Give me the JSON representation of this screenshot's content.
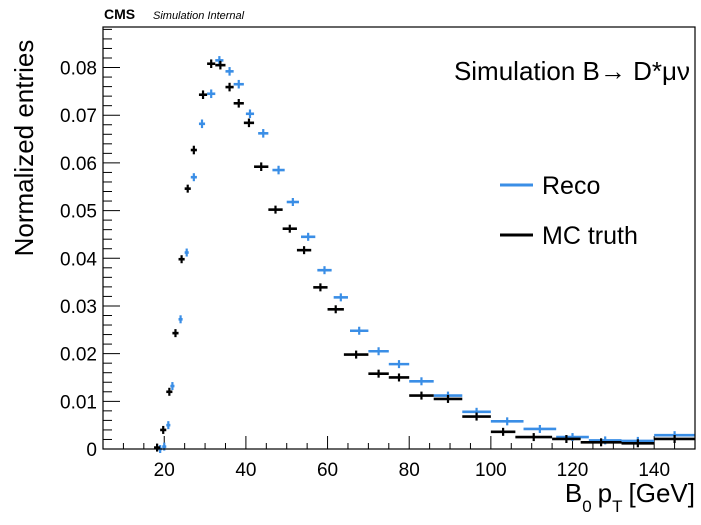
{
  "header": {
    "experiment": "CMS",
    "status": "Simulation Internal"
  },
  "annotation": "Simulation B→ D*μν",
  "chart_data": {
    "type": "line",
    "title": "",
    "xlabel": "B₀ pₜ [GeV]",
    "ylabel": "Normalized entries",
    "xlim": [
      5,
      150
    ],
    "ylim": [
      0,
      0.0885
    ],
    "grid": false,
    "legend_position": "right",
    "x_ticks": [
      20,
      40,
      60,
      80,
      100,
      120,
      140
    ],
    "y_ticks": [
      0,
      0.01,
      0.02,
      0.03,
      0.04,
      0.05,
      0.06,
      0.07,
      0.08
    ],
    "y_tick_labels": [
      "0",
      "0.01",
      "0.02",
      "0.03",
      "0.04",
      "0.05",
      "0.06",
      "0.07",
      "0.08"
    ],
    "series": [
      {
        "name": "Reco",
        "color": "#3a8ee6",
        "points": [
          {
            "x0": 18.5,
            "x1": 19.5,
            "y": 0.0,
            "err": 0.0003
          },
          {
            "x0": 19.5,
            "x1": 20.5,
            "y": 0.0005,
            "err": 0.0004
          },
          {
            "x0": 20.5,
            "x1": 21.5,
            "y": 0.005,
            "err": 0.0005
          },
          {
            "x0": 21.5,
            "x1": 22.5,
            "y": 0.0132,
            "err": 0.0005
          },
          {
            "x0": 23.5,
            "x1": 24.5,
            "y": 0.0272,
            "err": 0.0006
          },
          {
            "x0": 25.0,
            "x1": 26.0,
            "y": 0.0412,
            "err": 0.0007
          },
          {
            "x0": 26.5,
            "x1": 28.0,
            "y": 0.057,
            "err": 0.0008
          },
          {
            "x0": 28.5,
            "x1": 30.0,
            "y": 0.0682,
            "err": 0.0009
          },
          {
            "x0": 30.5,
            "x1": 32.5,
            "y": 0.0745,
            "err": 0.0009
          },
          {
            "x0": 32.5,
            "x1": 34.5,
            "y": 0.0815,
            "err": 0.0009
          },
          {
            "x0": 35.0,
            "x1": 37.0,
            "y": 0.0792,
            "err": 0.0009
          },
          {
            "x0": 37.0,
            "x1": 39.5,
            "y": 0.0765,
            "err": 0.0009
          },
          {
            "x0": 40.0,
            "x1": 42.0,
            "y": 0.0703,
            "err": 0.0009
          },
          {
            "x0": 43.0,
            "x1": 45.5,
            "y": 0.0662,
            "err": 0.0009
          },
          {
            "x0": 46.5,
            "x1": 49.5,
            "y": 0.0585,
            "err": 0.0009
          },
          {
            "x0": 50.0,
            "x1": 53.0,
            "y": 0.0518,
            "err": 0.0008
          },
          {
            "x0": 53.5,
            "x1": 57.0,
            "y": 0.0445,
            "err": 0.0008
          },
          {
            "x0": 57.5,
            "x1": 61.0,
            "y": 0.0375,
            "err": 0.0008
          },
          {
            "x0": 61.5,
            "x1": 65.0,
            "y": 0.0318,
            "err": 0.0007
          },
          {
            "x0": 65.5,
            "x1": 70.0,
            "y": 0.0248,
            "err": 0.0006
          },
          {
            "x0": 70.0,
            "x1": 75.0,
            "y": 0.0205,
            "err": 0.0006
          },
          {
            "x0": 75.0,
            "x1": 80.0,
            "y": 0.0178,
            "err": 0.0005
          },
          {
            "x0": 80.0,
            "x1": 86.0,
            "y": 0.0142,
            "err": 0.0005
          },
          {
            "x0": 86.0,
            "x1": 93.0,
            "y": 0.0112,
            "err": 0.0004
          },
          {
            "x0": 93.0,
            "x1": 100.0,
            "y": 0.0078,
            "err": 0.0004
          },
          {
            "x0": 100.0,
            "x1": 108.0,
            "y": 0.0058,
            "err": 0.0003
          },
          {
            "x0": 108.0,
            "x1": 116.0,
            "y": 0.0042,
            "err": 0.0003
          },
          {
            "x0": 116.0,
            "x1": 124.0,
            "y": 0.0025,
            "err": 0.0003
          },
          {
            "x0": 124.0,
            "x1": 132.0,
            "y": 0.0018,
            "err": 0.0002
          },
          {
            "x0": 132.0,
            "x1": 140.0,
            "y": 0.0017,
            "err": 0.0002
          },
          {
            "x0": 140.0,
            "x1": 150.0,
            "y": 0.0029,
            "err": 0.0002
          }
        ]
      },
      {
        "name": "MC truth",
        "color": "#000000",
        "points": [
          {
            "x0": 17.5,
            "x1": 19.0,
            "y": 0.0003,
            "err": 0.0003
          },
          {
            "x0": 19.0,
            "x1": 20.5,
            "y": 0.004,
            "err": 0.0004
          },
          {
            "x0": 20.5,
            "x1": 22.0,
            "y": 0.012,
            "err": 0.0005
          },
          {
            "x0": 22.0,
            "x1": 23.5,
            "y": 0.0243,
            "err": 0.0006
          },
          {
            "x0": 23.5,
            "x1": 25.0,
            "y": 0.0398,
            "err": 0.0007
          },
          {
            "x0": 25.0,
            "x1": 26.5,
            "y": 0.0546,
            "err": 0.0008
          },
          {
            "x0": 26.5,
            "x1": 28.0,
            "y": 0.0627,
            "err": 0.0009
          },
          {
            "x0": 28.5,
            "x1": 30.5,
            "y": 0.0743,
            "err": 0.0009
          },
          {
            "x0": 30.5,
            "x1": 32.5,
            "y": 0.0808,
            "err": 0.0009
          },
          {
            "x0": 32.5,
            "x1": 35.0,
            "y": 0.0805,
            "err": 0.0009
          },
          {
            "x0": 35.0,
            "x1": 37.0,
            "y": 0.0759,
            "err": 0.0009
          },
          {
            "x0": 37.0,
            "x1": 39.5,
            "y": 0.0725,
            "err": 0.0009
          },
          {
            "x0": 39.5,
            "x1": 42.0,
            "y": 0.0684,
            "err": 0.0009
          },
          {
            "x0": 42.0,
            "x1": 45.5,
            "y": 0.0592,
            "err": 0.0009
          },
          {
            "x0": 45.5,
            "x1": 49.0,
            "y": 0.0502,
            "err": 0.0008
          },
          {
            "x0": 49.0,
            "x1": 52.5,
            "y": 0.0462,
            "err": 0.0008
          },
          {
            "x0": 52.5,
            "x1": 56.0,
            "y": 0.0417,
            "err": 0.0008
          },
          {
            "x0": 56.5,
            "x1": 60.0,
            "y": 0.0339,
            "err": 0.0007
          },
          {
            "x0": 60.0,
            "x1": 64.0,
            "y": 0.0293,
            "err": 0.0007
          },
          {
            "x0": 64.0,
            "x1": 70.0,
            "y": 0.0198,
            "err": 0.0006
          },
          {
            "x0": 70.0,
            "x1": 75.0,
            "y": 0.0158,
            "err": 0.0005
          },
          {
            "x0": 75.0,
            "x1": 80.0,
            "y": 0.015,
            "err": 0.0005
          },
          {
            "x0": 80.0,
            "x1": 86.0,
            "y": 0.0112,
            "err": 0.0004
          },
          {
            "x0": 86.0,
            "x1": 93.0,
            "y": 0.0105,
            "err": 0.0004
          },
          {
            "x0": 93.0,
            "x1": 100.0,
            "y": 0.0068,
            "err": 0.0004
          },
          {
            "x0": 100.0,
            "x1": 106.0,
            "y": 0.0036,
            "err": 0.0003
          },
          {
            "x0": 106.0,
            "x1": 115.0,
            "y": 0.0025,
            "err": 0.0003
          },
          {
            "x0": 115.0,
            "x1": 122.0,
            "y": 0.0021,
            "err": 0.0002
          },
          {
            "x0": 122.0,
            "x1": 132.0,
            "y": 0.0014,
            "err": 0.0002
          },
          {
            "x0": 132.0,
            "x1": 140.0,
            "y": 0.0012,
            "err": 0.0002
          },
          {
            "x0": 140.0,
            "x1": 150.0,
            "y": 0.0021,
            "err": 0.0002
          }
        ]
      }
    ]
  }
}
